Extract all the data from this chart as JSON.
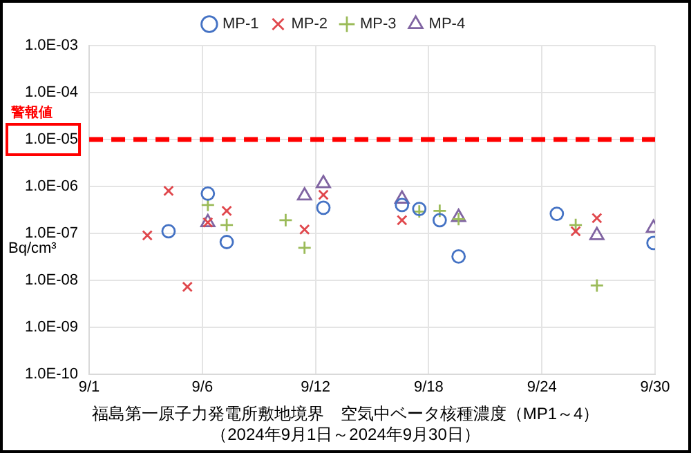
{
  "chart_data": {
    "type": "scatter",
    "title": "福島第一原子力発電所敷地境界　空気中ベータ核種濃度（MP1～4）",
    "subtitle": "（2024年9月1日～2024年9月30日）",
    "ylabel": "Bq/cm³",
    "log": "y",
    "xlim": [
      "--08-31",
      "--09-30"
    ],
    "xticks": [
      {
        "value": "--08-31",
        "label": "9/1"
      },
      {
        "value": "--09-06",
        "label": "9/6"
      },
      {
        "value": "--09-12",
        "label": "9/12"
      },
      {
        "value": "--09-18",
        "label": "9/18"
      },
      {
        "value": "--09-24",
        "label": "9/24"
      },
      {
        "value": "--09-30",
        "label": "9/30"
      }
    ],
    "ylim": [
      1e-10,
      0.001
    ],
    "yticks": [
      {
        "value": 1e-10,
        "label": "1.0E-10"
      },
      {
        "value": 1e-09,
        "label": "1.0E-09"
      },
      {
        "value": 1e-08,
        "label": "1.0E-08"
      },
      {
        "value": 1e-07,
        "label": "1.0E-07"
      },
      {
        "value": 1e-06,
        "label": "1.0E-06"
      },
      {
        "value": 1e-05,
        "label": "1.0E-05"
      },
      {
        "value": 0.0001,
        "label": "1.0E-04"
      },
      {
        "value": 0.001,
        "label": "1.0E-03"
      }
    ],
    "grid": true,
    "legend": "top",
    "ref_lines": [
      {
        "axis": "y",
        "value": 1e-05,
        "label": "警報値",
        "color": "#ff0000",
        "line_style": "dashed"
      }
    ],
    "series": [
      {
        "name": "MP-1",
        "color": "#4472c4",
        "marker": "circle",
        "x": [
          "--09-04T05:00",
          "--09-06T07:00",
          "--09-07T07:00",
          "--09-12T10:00",
          "--09-16T14:00",
          "--09-17T12:00",
          "--09-18T14:00",
          "--09-19T14:00",
          "--09-24T19:00",
          "--09-29T22:00"
        ],
        "values": [
          1.1e-07,
          7e-07,
          6.5e-08,
          3.5e-07,
          4e-07,
          3.3e-07,
          1.9e-07,
          3.2e-08,
          2.6e-07,
          6.2e-08
        ]
      },
      {
        "name": "MP-2",
        "color": "#e0474c",
        "marker": "cross",
        "x": [
          "--09-03T02:00",
          "--09-04T05:00",
          "--09-05T05:00",
          "--09-06T07:00",
          "--09-07T07:00",
          "--09-11T10:00",
          "--09-12T10:00",
          "--09-16T14:00",
          "--09-25T19:00",
          "--09-26T22:00"
        ],
        "values": [
          9e-08,
          8e-07,
          7.2e-09,
          1.7e-07,
          3e-07,
          1.2e-07,
          6.6e-07,
          1.9e-07,
          1.1e-07,
          2.1e-07
        ]
      },
      {
        "name": "MP-3",
        "color": "#9bbb59",
        "marker": "plus",
        "x": [
          "--09-06T07:00",
          "--09-07T07:00",
          "--09-10T10:00",
          "--09-11T10:00",
          "--09-17T12:00",
          "--09-18T14:00",
          "--09-19T14:00",
          "--09-25T19:00",
          "--09-26T22:00"
        ],
        "values": [
          4e-07,
          1.5e-07,
          1.9e-07,
          4.9e-08,
          2.9e-07,
          3e-07,
          2e-07,
          1.5e-07,
          7.7e-09
        ]
      },
      {
        "name": "MP-4",
        "color": "#8064a2",
        "marker": "triangle",
        "x": [
          "--09-06T07:00",
          "--09-11T10:00",
          "--09-12T10:00",
          "--09-16T14:00",
          "--09-19T14:00",
          "--09-26T22:00",
          "--09-29T22:00"
        ],
        "values": [
          1.7e-07,
          6.3e-07,
          1.15e-06,
          5.4e-07,
          2.2e-07,
          9e-08,
          1.3e-07
        ]
      }
    ]
  }
}
